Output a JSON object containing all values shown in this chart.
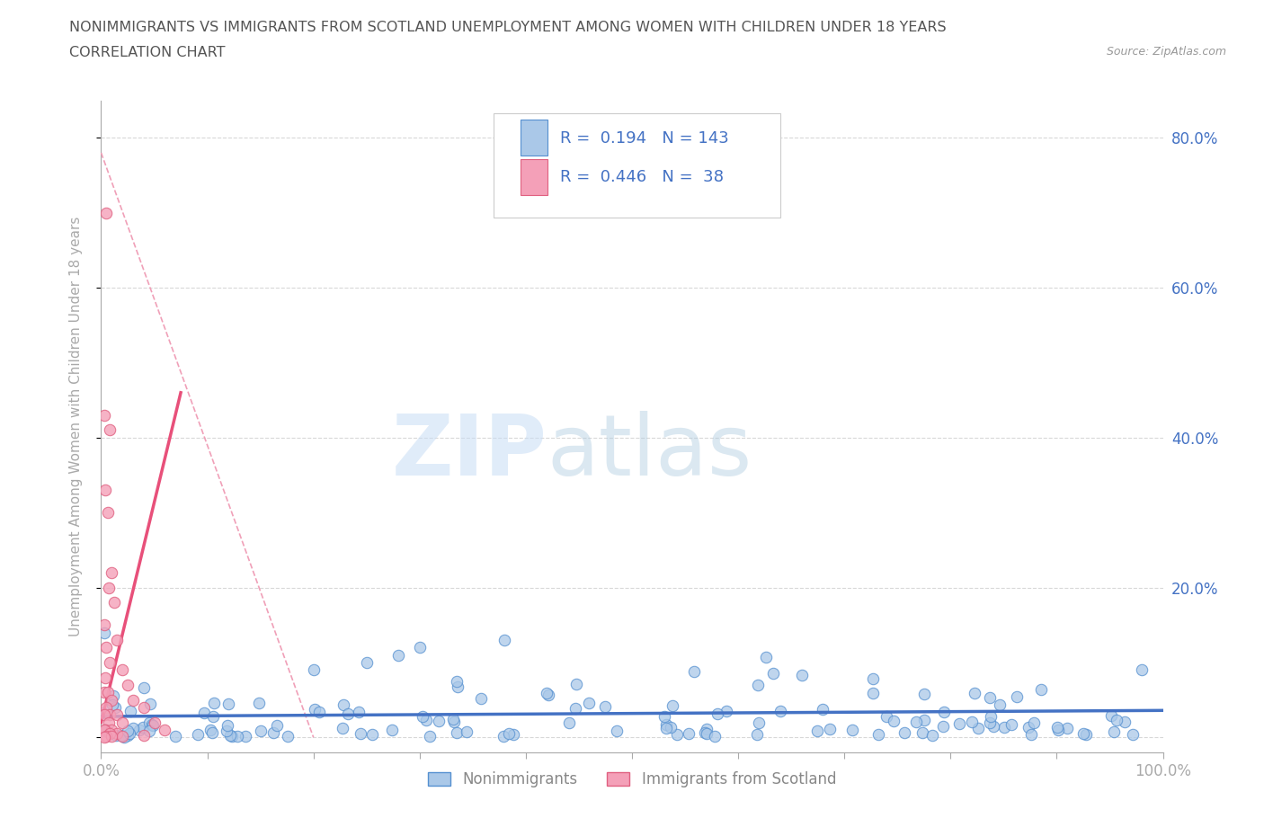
{
  "title_line1": "NONIMMIGRANTS VS IMMIGRANTS FROM SCOTLAND UNEMPLOYMENT AMONG WOMEN WITH CHILDREN UNDER 18 YEARS",
  "title_line2": "CORRELATION CHART",
  "source": "Source: ZipAtlas.com",
  "ylabel": "Unemployment Among Women with Children Under 18 years",
  "xlim": [
    0.0,
    1.0
  ],
  "ylim": [
    -0.02,
    0.85
  ],
  "nonimmigrant_R": 0.194,
  "nonimmigrant_N": 143,
  "immigrant_R": 0.446,
  "immigrant_N": 38,
  "nonimmigrant_color": "#aac8e8",
  "immigrant_color": "#f4a0b8",
  "nonimmigrant_edge_color": "#5590d0",
  "immigrant_edge_color": "#e06080",
  "nonimmigrant_line_color": "#4472c4",
  "immigrant_line_color": "#e8507a",
  "immigrant_dash_color": "#f0a0b8",
  "watermark_zip_color": "#c8ddf0",
  "watermark_atlas_color": "#b8cce0",
  "legend_R_color": "#4472c4",
  "background_color": "#ffffff",
  "grid_color": "#d8d8d8",
  "title_color": "#555555",
  "axis_color": "#aaaaaa",
  "right_tick_color": "#4472c4"
}
